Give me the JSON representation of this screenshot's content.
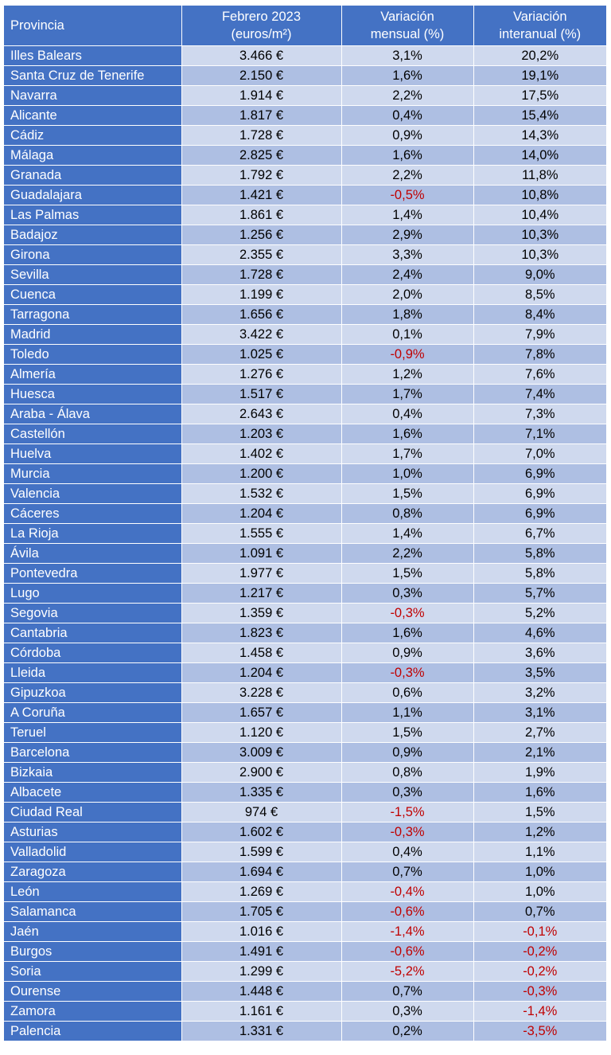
{
  "table": {
    "headers": [
      {
        "line1": "Provincia",
        "line2": ""
      },
      {
        "line1": "Febrero 2023",
        "line2": "(euros/m²)"
      },
      {
        "line1": "Variación",
        "line2": "mensual (%)"
      },
      {
        "line1": "Variación",
        "line2": "interanual (%)"
      }
    ],
    "rows": [
      [
        "Illes Balears",
        "3.466 €",
        "3,1%",
        "20,2%"
      ],
      [
        "Santa Cruz de Tenerife",
        "2.150 €",
        "1,6%",
        "19,1%"
      ],
      [
        "Navarra",
        "1.914 €",
        "2,2%",
        "17,5%"
      ],
      [
        "Alicante",
        "1.817 €",
        "0,4%",
        "15,4%"
      ],
      [
        "Cádiz",
        "1.728 €",
        "0,9%",
        "14,3%"
      ],
      [
        "Málaga",
        "2.825 €",
        "1,6%",
        "14,0%"
      ],
      [
        "Granada",
        "1.792 €",
        "2,2%",
        "11,8%"
      ],
      [
        "Guadalajara",
        "1.421 €",
        "-0,5%",
        "10,8%"
      ],
      [
        "Las Palmas",
        "1.861 €",
        "1,4%",
        "10,4%"
      ],
      [
        "Badajoz",
        "1.256 €",
        "2,9%",
        "10,3%"
      ],
      [
        "Girona",
        "2.355 €",
        "3,3%",
        "10,3%"
      ],
      [
        "Sevilla",
        "1.728 €",
        "2,4%",
        "9,0%"
      ],
      [
        "Cuenca",
        "1.199 €",
        "2,0%",
        "8,5%"
      ],
      [
        "Tarragona",
        "1.656 €",
        "1,8%",
        "8,4%"
      ],
      [
        "Madrid",
        "3.422 €",
        "0,1%",
        "7,9%"
      ],
      [
        "Toledo",
        "1.025 €",
        "-0,9%",
        "7,8%"
      ],
      [
        "Almería",
        "1.276 €",
        "1,2%",
        "7,6%"
      ],
      [
        "Huesca",
        "1.517 €",
        "1,7%",
        "7,4%"
      ],
      [
        "Araba - Álava",
        "2.643 €",
        "0,4%",
        "7,3%"
      ],
      [
        "Castellón",
        "1.203 €",
        "1,6%",
        "7,1%"
      ],
      [
        "Huelva",
        "1.402 €",
        "1,7%",
        "7,0%"
      ],
      [
        "Murcia",
        "1.200 €",
        "1,0%",
        "6,9%"
      ],
      [
        "Valencia",
        "1.532 €",
        "1,5%",
        "6,9%"
      ],
      [
        "Cáceres",
        "1.204 €",
        "0,8%",
        "6,9%"
      ],
      [
        "La Rioja",
        "1.555 €",
        "1,4%",
        "6,7%"
      ],
      [
        "Ávila",
        "1.091 €",
        "2,2%",
        "5,8%"
      ],
      [
        "Pontevedra",
        "1.977 €",
        "1,5%",
        "5,8%"
      ],
      [
        "Lugo",
        "1.217 €",
        "0,3%",
        "5,7%"
      ],
      [
        "Segovia",
        "1.359 €",
        "-0,3%",
        "5,2%"
      ],
      [
        "Cantabria",
        "1.823 €",
        "1,6%",
        "4,6%"
      ],
      [
        "Córdoba",
        "1.458 €",
        "0,9%",
        "3,6%"
      ],
      [
        "Lleida",
        "1.204 €",
        "-0,3%",
        "3,5%"
      ],
      [
        "Gipuzkoa",
        "3.228 €",
        "0,6%",
        "3,2%"
      ],
      [
        "A Coruña",
        "1.657 €",
        "1,1%",
        "3,1%"
      ],
      [
        "Teruel",
        "1.120 €",
        "1,5%",
        "2,7%"
      ],
      [
        "Barcelona",
        "3.009 €",
        "0,9%",
        "2,1%"
      ],
      [
        "Bizkaia",
        "2.900 €",
        "0,8%",
        "1,9%"
      ],
      [
        "Albacete",
        "1.335 €",
        "0,3%",
        "1,6%"
      ],
      [
        "Ciudad Real",
        "974 €",
        "-1,5%",
        "1,5%"
      ],
      [
        "Asturias",
        "1.602 €",
        "-0,3%",
        "1,2%"
      ],
      [
        "Valladolid",
        "1.599 €",
        "0,4%",
        "1,1%"
      ],
      [
        "Zaragoza",
        "1.694 €",
        "0,7%",
        "1,0%"
      ],
      [
        "León",
        "1.269 €",
        "-0,4%",
        "1,0%"
      ],
      [
        "Salamanca",
        "1.705 €",
        "-0,6%",
        "0,7%"
      ],
      [
        "Jaén",
        "1.016 €",
        "-1,4%",
        "-0,1%"
      ],
      [
        "Burgos",
        "1.491 €",
        "-0,6%",
        "-0,2%"
      ],
      [
        "Soria",
        "1.299 €",
        "-5,2%",
        "-0,2%"
      ],
      [
        "Ourense",
        "1.448 €",
        "0,7%",
        "-0,3%"
      ],
      [
        "Zamora",
        "1.161 €",
        "0,3%",
        "-1,4%"
      ],
      [
        "Palencia",
        "1.331 €",
        "0,2%",
        "-3,5%"
      ]
    ]
  },
  "colors": {
    "header_bg": "#4472c4",
    "name_col_bg": "#4472c4",
    "band_light": "#cfd9ee",
    "band_dark": "#aebfe3",
    "negative_text": "#c00000"
  }
}
